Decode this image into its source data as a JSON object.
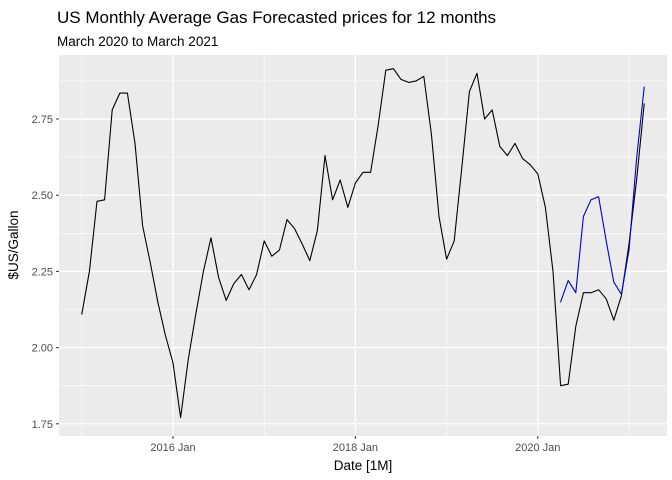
{
  "chart_data": {
    "type": "line",
    "title": "US Monthly Average Gas Forecasted prices for 12 months",
    "subtitle": "March 2020 to March 2021",
    "xlabel": "Date [1M]",
    "ylabel": "$US/Gallon",
    "x_ticks": [
      "2016 Jan",
      "2018 Jan",
      "2020 Jan"
    ],
    "y_ticks": [
      "1.75",
      "2.00",
      "2.25",
      "2.50",
      "2.75"
    ],
    "ylim": [
      1.71,
      2.96
    ],
    "xlim": [
      "2014-10",
      "2021-06"
    ],
    "grid": true,
    "background": "#ebebeb",
    "series": [
      {
        "color": "#000000",
        "x": [
          "2015-01",
          "2015-02",
          "2015-03",
          "2015-04",
          "2015-05",
          "2015-06",
          "2015-07",
          "2015-08",
          "2015-09",
          "2015-10",
          "2015-11",
          "2015-12",
          "2016-01",
          "2016-02",
          "2016-03",
          "2016-04",
          "2016-05",
          "2016-06",
          "2016-07",
          "2016-08",
          "2016-09",
          "2016-10",
          "2016-11",
          "2016-12",
          "2017-01",
          "2017-02",
          "2017-03",
          "2017-04",
          "2017-05",
          "2017-06",
          "2017-07",
          "2017-08",
          "2017-09",
          "2017-10",
          "2017-11",
          "2017-12",
          "2018-01",
          "2018-02",
          "2018-03",
          "2018-04",
          "2018-05",
          "2018-06",
          "2018-07",
          "2018-08",
          "2018-09",
          "2018-10",
          "2018-11",
          "2018-12",
          "2019-01",
          "2019-02",
          "2019-03",
          "2019-04",
          "2019-05",
          "2019-06",
          "2019-07",
          "2019-08",
          "2019-09",
          "2019-10",
          "2019-11",
          "2019-12",
          "2020-01",
          "2020-02",
          "2020-03",
          "2020-04",
          "2020-05",
          "2020-06",
          "2020-07",
          "2020-08",
          "2020-09",
          "2020-10",
          "2020-11",
          "2020-12",
          "2021-01",
          "2021-02",
          "2021-03"
        ],
        "values": [
          2.11,
          2.25,
          2.48,
          2.485,
          2.78,
          2.835,
          2.835,
          2.67,
          2.4,
          2.28,
          2.15,
          2.04,
          1.95,
          1.77,
          1.96,
          2.11,
          2.25,
          2.36,
          2.23,
          2.155,
          2.21,
          2.24,
          2.19,
          2.24,
          2.35,
          2.3,
          2.32,
          2.42,
          2.39,
          2.34,
          2.285,
          2.385,
          2.63,
          2.485,
          2.55,
          2.46,
          2.54,
          2.575,
          2.575,
          2.73,
          2.91,
          2.915,
          2.88,
          2.87,
          2.875,
          2.89,
          2.7,
          2.43,
          2.29,
          2.35,
          2.59,
          2.84,
          2.9,
          2.75,
          2.78,
          2.66,
          2.63,
          2.67,
          2.62,
          2.6,
          2.57,
          2.46,
          2.25,
          1.875,
          1.88,
          2.07,
          2.18,
          2.18,
          2.19,
          2.16,
          2.09,
          2.17,
          2.34,
          2.55,
          2.8
        ]
      },
      {
        "color": "#0000cc",
        "x": [
          "2020-04",
          "2020-05",
          "2020-06",
          "2020-07",
          "2020-08",
          "2020-09",
          "2020-10",
          "2020-11",
          "2020-12",
          "2021-01",
          "2021-02",
          "2021-03"
        ],
        "values": [
          2.15,
          2.22,
          2.18,
          2.43,
          2.485,
          2.495,
          2.35,
          2.215,
          2.175,
          2.32,
          2.62,
          2.855
        ]
      }
    ]
  }
}
